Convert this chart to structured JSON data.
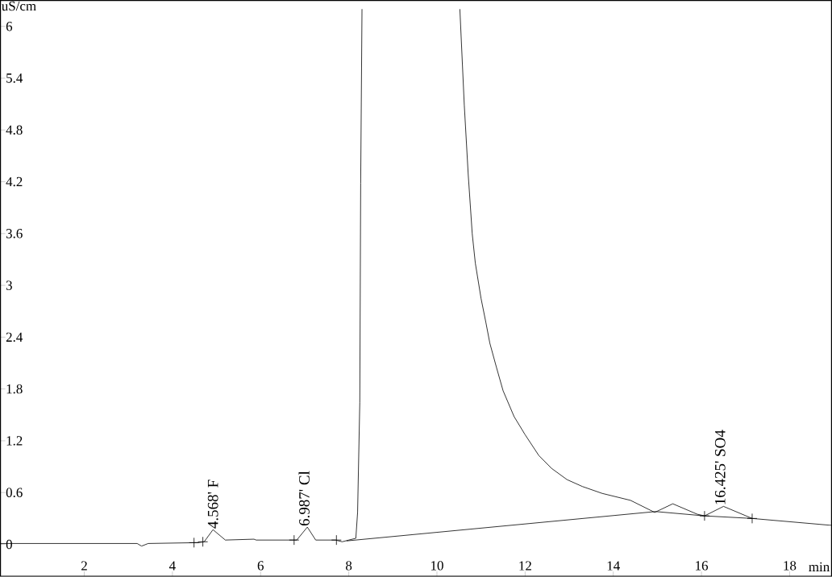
{
  "chart_data": {
    "type": "line",
    "xlabel": "min",
    "ylabel": "uS/cm",
    "xlim": [
      0.1,
      18.95
    ],
    "ylim": [
      -0.37,
      6.3
    ],
    "xticks": [
      2,
      4,
      6,
      8,
      10,
      12,
      14,
      16,
      18
    ],
    "yticks": [
      0,
      0.6,
      1.2,
      1.8,
      2.4,
      3,
      3.6,
      4.2,
      4.8,
      5.4,
      6
    ],
    "grid": false,
    "series": [
      {
        "color": "#000000",
        "marker": "none",
        "x": [
          0.1,
          3.2,
          3.3,
          3.45,
          4.6,
          4.72,
          4.92,
          5.2,
          5.85,
          5.9,
          6.82,
          7.06,
          7.25,
          7.7,
          7.85,
          8.0,
          8.16,
          8.2,
          8.25,
          8.27,
          8.3
        ],
        "values": [
          0.01,
          0.01,
          -0.02,
          0.01,
          0.02,
          0.03,
          0.17,
          0.05,
          0.06,
          0.05,
          0.05,
          0.2,
          0.05,
          0.05,
          0.03,
          0.05,
          0.07,
          0.37,
          1.64,
          4.18,
          6.2
        ]
      },
      {
        "color": "#000000",
        "marker": "none",
        "x": [
          10.52,
          10.62,
          10.71,
          10.8,
          10.87,
          11.0,
          11.11,
          11.2,
          11.35,
          11.5,
          11.75,
          12.0,
          12.31,
          12.6,
          12.95,
          13.3,
          13.75,
          14.39,
          14.94,
          15.35,
          15.9,
          16.07,
          16.5,
          17.15,
          18.95
        ],
        "values": [
          6.2,
          5.09,
          4.28,
          3.6,
          3.26,
          2.85,
          2.57,
          2.33,
          2.05,
          1.78,
          1.48,
          1.27,
          1.03,
          0.88,
          0.75,
          0.67,
          0.59,
          0.51,
          0.37,
          0.47,
          0.35,
          0.33,
          0.44,
          0.3,
          0.22
        ]
      },
      {
        "color": "#000000",
        "marker": "none",
        "x": [
          7.95,
          14.96,
          16.07,
          17.15
        ],
        "values": [
          0.04,
          0.38,
          0.33,
          0.3
        ]
      },
      {
        "type": "scatter",
        "color": "#000000",
        "marker": "cross",
        "x": [
          4.49,
          4.69,
          6.76,
          7.72,
          16.07,
          17.15
        ],
        "values": [
          0.02,
          0.03,
          0.05,
          0.05,
          0.33,
          0.3
        ]
      }
    ],
    "annotations": [
      {
        "text": "4.568' F",
        "x": 4.92,
        "y": 0.17
      },
      {
        "text": "6.987' Cl",
        "x": 6.987,
        "y": 0.2
      },
      {
        "text": "16.425' SO4",
        "x": 16.425,
        "y": 0.44
      }
    ]
  }
}
